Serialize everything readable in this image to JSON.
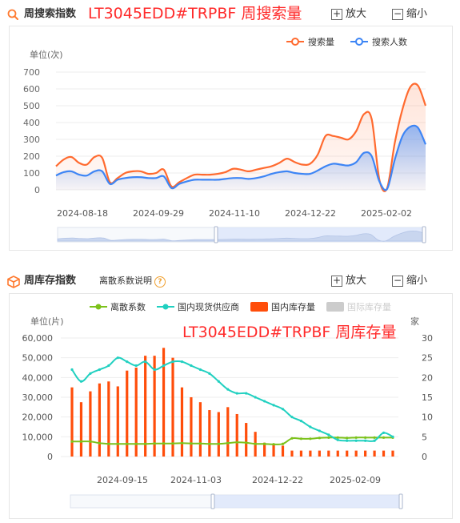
{
  "search_section": {
    "title": "周搜索指数",
    "overlay": "LT3045EDD#TRPBF 周搜索量",
    "zoom_in_label": "放大",
    "zoom_out_label": "缩小"
  },
  "stock_section": {
    "title": "周库存指数",
    "subtitle": "离散系数说明",
    "help_glyph": "?",
    "overlay": "LT3045EDD#TRPBF 周库存量",
    "zoom_in_label": "放大",
    "zoom_out_label": "缩小"
  },
  "colors": {
    "search_volume": "#ff6a2f",
    "search_people": "#3d85f5",
    "dispersion": "#7cc21b",
    "domestic_supplier": "#20d0c0",
    "domestic_stock": "#ff4d0a",
    "intl_stock": "#cccccc",
    "accent": "#ff7a2f"
  },
  "chart_data": [
    {
      "type": "area",
      "ylabel": "单位(次)",
      "ylim": [
        0,
        700
      ],
      "yticks": [
        0,
        100,
        200,
        300,
        400,
        500,
        600,
        700
      ],
      "legend_position": "top-right",
      "x_tick_labels": [
        "2024-08-18",
        "2024-09-29",
        "2024-11-10",
        "2024-12-22",
        "2025-02-02"
      ],
      "series": [
        {
          "name": "搜索量",
          "color": "#ff6a2f",
          "values": [
            140,
            180,
            195,
            160,
            150,
            195,
            190,
            45,
            70,
            100,
            110,
            110,
            95,
            100,
            120,
            20,
            45,
            70,
            90,
            90,
            90,
            95,
            105,
            125,
            120,
            110,
            120,
            130,
            140,
            160,
            185,
            165,
            150,
            155,
            210,
            320,
            320,
            310,
            300,
            350,
            450,
            420,
            60,
            10,
            280,
            480,
            610,
            620,
            500
          ]
        },
        {
          "name": "搜索人数",
          "color": "#3d85f5",
          "values": [
            85,
            105,
            110,
            90,
            85,
            110,
            110,
            35,
            60,
            70,
            75,
            75,
            70,
            70,
            80,
            10,
            35,
            50,
            60,
            60,
            60,
            60,
            65,
            70,
            70,
            65,
            70,
            80,
            95,
            105,
            110,
            100,
            95,
            95,
            115,
            140,
            155,
            150,
            145,
            165,
            220,
            200,
            50,
            5,
            180,
            320,
            375,
            370,
            270
          ]
        }
      ]
    },
    {
      "type": "bar",
      "ylabel": "单位(片)",
      "y2label": "家",
      "ylim": [
        0,
        60000
      ],
      "yticks": [
        0,
        10000,
        20000,
        30000,
        40000,
        50000,
        60000
      ],
      "y2lim": [
        0,
        30
      ],
      "y2ticks": [
        0,
        5,
        10,
        15,
        20,
        25,
        30
      ],
      "legend_position": "top",
      "x_tick_labels": [
        "2024-09-15",
        "2024-11-03",
        "2024-12-22",
        "2025-02-09"
      ],
      "series": [
        {
          "name": "离散系数",
          "kind": "line",
          "axis": "right",
          "color": "#7cc21b",
          "values": [
            3.8,
            3.8,
            3.8,
            3.4,
            3.2,
            3.2,
            3.2,
            3.2,
            3.2,
            3.3,
            3.3,
            3.3,
            3.4,
            3.3,
            3.3,
            3.2,
            3.2,
            3.4,
            3.6,
            3.5,
            3.2,
            3.2,
            3.1,
            3.2,
            4.6,
            4.5,
            4.5,
            4.7,
            4.8,
            4.8,
            4.7,
            4.8,
            4.8,
            4.8,
            4.8,
            4.8
          ]
        },
        {
          "name": "国内现货供应商",
          "kind": "line",
          "axis": "right",
          "color": "#20d0c0",
          "values": [
            22,
            19,
            21,
            22,
            23,
            25,
            24,
            23,
            24,
            22,
            23,
            24,
            24,
            23,
            22,
            21,
            19,
            17,
            16,
            16,
            15,
            14,
            13,
            12,
            10,
            9,
            7.5,
            6.5,
            5.5,
            4.2,
            4.0,
            4.0,
            4.0,
            4.0,
            6,
            5
          ]
        },
        {
          "name": "国内库存量",
          "kind": "bar",
          "axis": "left",
          "color": "#ff4d0a",
          "values": [
            35000,
            27500,
            33000,
            37000,
            38000,
            35500,
            43500,
            45000,
            51000,
            51000,
            55000,
            50000,
            35000,
            30000,
            27500,
            23500,
            22500,
            25000,
            21500,
            17000,
            12500,
            7000,
            6500,
            5500,
            3000,
            3000,
            3000,
            3000,
            3000,
            3000,
            3000,
            3000,
            3000,
            3000,
            3000,
            3000
          ]
        },
        {
          "name": "国际库存量",
          "kind": "bar",
          "axis": "left",
          "color": "#cccccc",
          "values": []
        }
      ]
    }
  ]
}
